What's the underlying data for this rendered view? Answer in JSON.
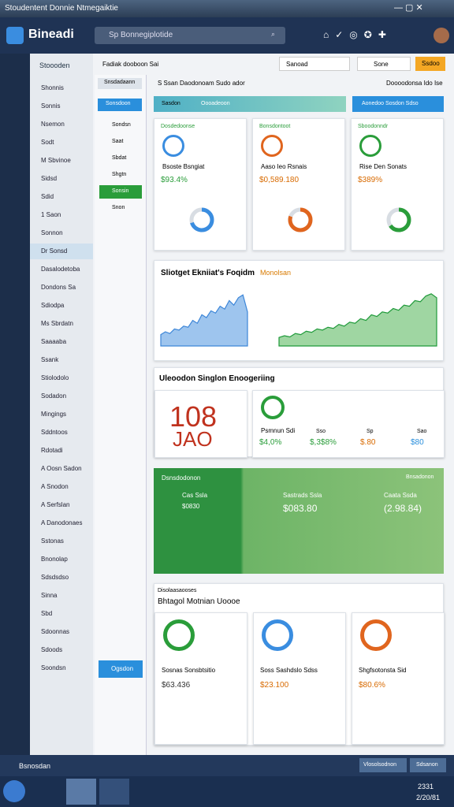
{
  "window": {
    "title": "Stoudentent Donnie Ntmegaiktie"
  },
  "header": {
    "brand": "Bineadi",
    "search": "Sp Bonnegiplotide"
  },
  "sidebar": {
    "title": "Stoooden",
    "items": [
      "Shonnis",
      "Sonnis",
      "Nsemon",
      "Sodt",
      "M Sbvinoe",
      "Sidsd",
      "Sdid",
      "1 Saon",
      "Sonnon",
      "Dr Sonsd",
      "Dasalodetoba",
      "Dondons Sa",
      "Sdiodpa",
      "Ms Sbrdatn",
      "Saaaaba",
      "Ssank",
      "Stiolodolo",
      "Sodadon",
      "Mingings",
      "Sddntoos",
      "Rdotadi",
      "A Oosn Sadon",
      "A Snodon",
      "A Serfslan",
      "A Danodonaes",
      "Sstonas",
      "Bnonolap",
      "Sdsdsdso",
      "Sinna",
      "Sbd",
      "Sdoonnas",
      "Sdoods",
      "Soondsn"
    ]
  },
  "subnav": {
    "top": "Snsdadaann",
    "button": "Sonsdoon",
    "items": [
      "Sondsn",
      "Saat",
      "Sbdat",
      "Shgtn",
      "Sonsin",
      "Snon"
    ],
    "bottom": "Ogsdon"
  },
  "toolbar": {
    "label": "Fadiak dooboon Sai",
    "select1": "Sanoad",
    "select2": "Sone",
    "button": "Ssdoo"
  },
  "crumb": {
    "left": "S Ssan Daodonoam Sudo ador",
    "right": "Doooodonsa Ido Ise"
  },
  "tabs": {
    "active": "Sasdon",
    "second": "Oooadeoon",
    "button": "Aonedoo Sosdon Sdso"
  },
  "cards": [
    {
      "tag": "Dosdedoonse",
      "label": "Bsoste Bsngiat",
      "value": "$93.4%",
      "gauge": 70
    },
    {
      "tag": "Bonsdontoot",
      "label": "Aaso Ieo Rsnais",
      "value": "$0,589.180",
      "gauge": 80
    },
    {
      "tag": "Sboodonndr",
      "label": "Rise Den Sonats",
      "value": "$389%",
      "gauge": 65
    }
  ],
  "trend": {
    "title": "Sliotget Ekniiat's Foqidm",
    "subtitle": "Monolsan",
    "ylim": [
      0,
      100
    ],
    "left": [
      20,
      25,
      22,
      30,
      28,
      35,
      33,
      45,
      40,
      55,
      50,
      62,
      58,
      70,
      65,
      80,
      72,
      85,
      90,
      60
    ],
    "right": [
      15,
      18,
      16,
      22,
      20,
      26,
      24,
      30,
      28,
      33,
      31,
      38,
      35,
      42,
      40,
      48,
      45,
      55,
      52,
      60,
      58,
      66,
      63,
      72,
      70,
      80,
      78,
      88,
      92,
      85
    ]
  },
  "status": {
    "title": "Uleoodon Singlon Enoogeriing",
    "big": "108",
    "big2": "JAO",
    "label": "Psmnun Sdi",
    "values": [
      "$4,0%",
      "$,3$8%",
      "$.80",
      "$80"
    ],
    "captions": [
      "Sso",
      "Sp",
      "Sao"
    ]
  },
  "banner": {
    "title": "Dsnsdodonon",
    "tag": "Bnsadonon",
    "items": [
      {
        "label": "Cas Ssla",
        "value": "$0830"
      },
      {
        "label": "Sastrads Ssla",
        "value": "$083.80"
      },
      {
        "label": "Caata Ssda",
        "value": "(2.98.84)"
      }
    ]
  },
  "bottom": {
    "caption": "Disolaasaooses",
    "title": "Bhtagol Motnian Uoooe",
    "cards": [
      {
        "label": "Sosnas Sonsbtsitio",
        "value": "$63.436"
      },
      {
        "label": "Soss Sashdslo Sdss",
        "value": "$23.100"
      },
      {
        "label": "Shgfsotonsta Sid",
        "value": "$80.6%"
      }
    ]
  },
  "appbar": {
    "label": "Bsnosdan",
    "button1": "Vlosolsodnon",
    "button2": "Sdsanon"
  },
  "taskbar": {
    "time": "2331",
    "date": "2/20/81"
  }
}
